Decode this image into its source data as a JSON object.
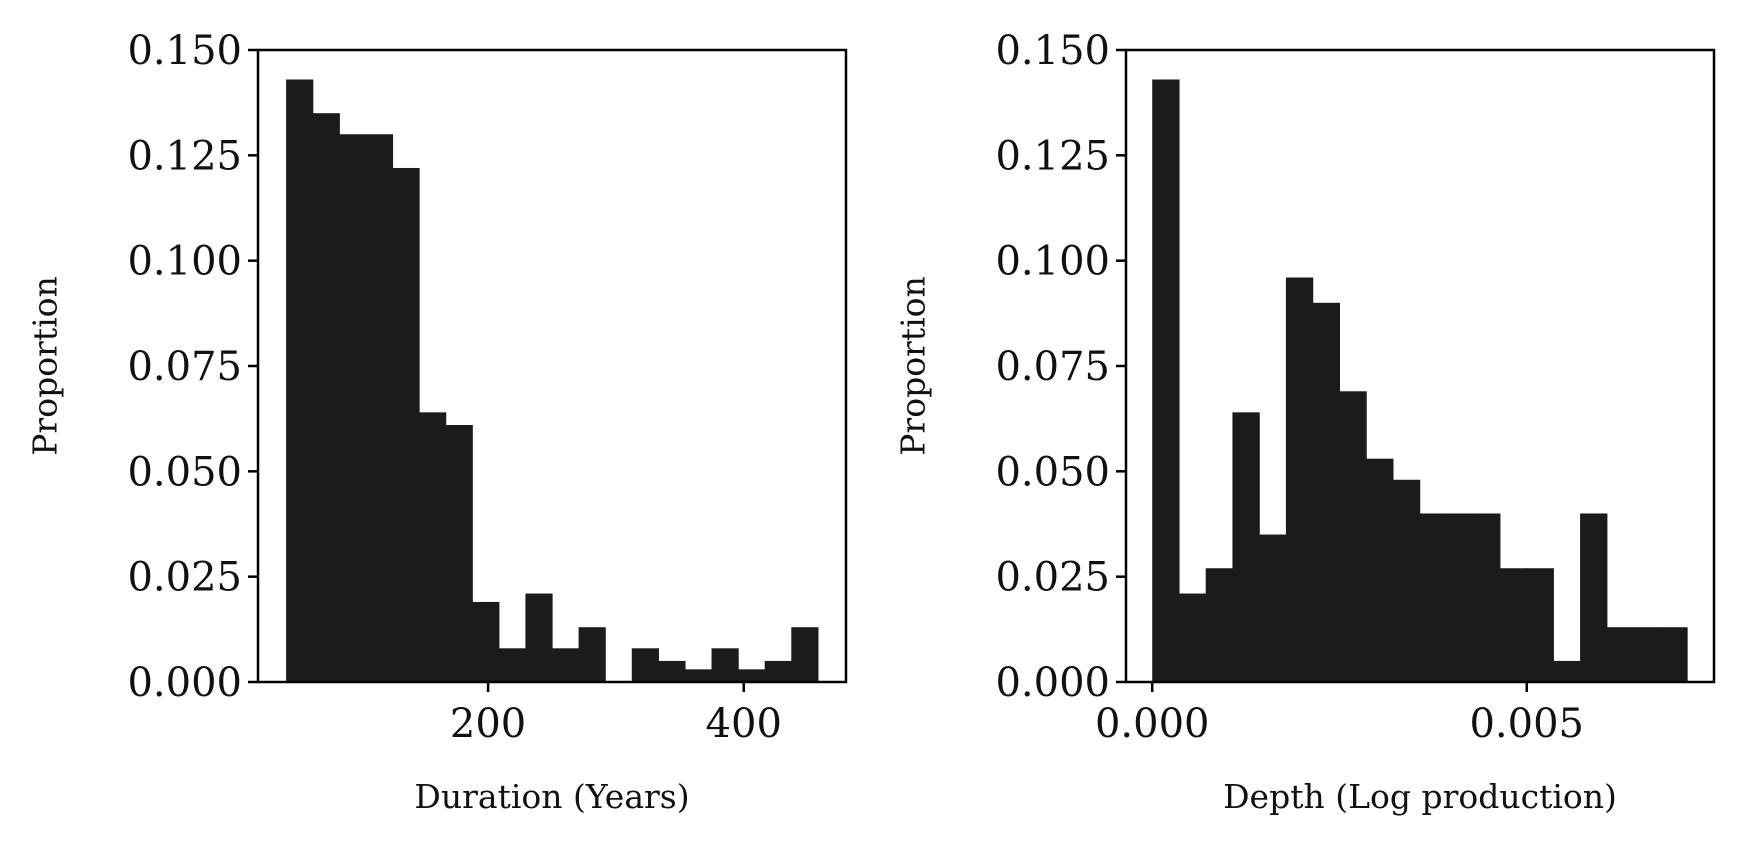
{
  "chart_data": [
    {
      "type": "bar",
      "subtype": "histogram",
      "xlabel": "Duration (Years)",
      "ylabel": "Proportion",
      "ylim": [
        0,
        0.15
      ],
      "xlim": [
        20,
        480
      ],
      "yticks": [
        "0.000",
        "0.025",
        "0.050",
        "0.075",
        "0.100",
        "0.125",
        "0.150"
      ],
      "ytick_values": [
        0,
        0.025,
        0.05,
        0.075,
        0.1,
        0.125,
        0.15
      ],
      "xticks": [
        "200",
        "400"
      ],
      "xtick_values": [
        200,
        400
      ],
      "bin_edges": [
        42,
        62.8,
        83.6,
        104.4,
        125.2,
        146,
        166.8,
        187.6,
        208.4,
        229.2,
        250,
        270.8,
        291.6,
        312.4,
        333.2,
        354,
        374.8,
        395.6,
        416.4,
        437.2,
        458
      ],
      "values": [
        0.143,
        0.135,
        0.13,
        0.13,
        0.122,
        0.064,
        0.061,
        0.019,
        0.008,
        0.021,
        0.008,
        0.013,
        0.0,
        0.008,
        0.005,
        0.003,
        0.008,
        0.003,
        0.005,
        0.013
      ],
      "color": "#1b1b1b",
      "grid": false
    },
    {
      "type": "bar",
      "subtype": "histogram",
      "xlabel": "Depth (Log production)",
      "ylabel": "Proportion",
      "ylim": [
        0,
        0.15
      ],
      "xlim": [
        -0.00035,
        0.0075
      ],
      "yticks": [
        "0.000",
        "0.025",
        "0.050",
        "0.075",
        "0.100",
        "0.125",
        "0.150"
      ],
      "ytick_values": [
        0,
        0.025,
        0.05,
        0.075,
        0.1,
        0.125,
        0.15
      ],
      "xticks": [
        "0.000",
        "0.005"
      ],
      "xtick_values": [
        0,
        0.005
      ],
      "bin_edges": [
        0.0,
        0.000357,
        0.000714,
        0.001071,
        0.001428,
        0.001785,
        0.002142,
        0.002499,
        0.002856,
        0.003213,
        0.00357,
        0.003927,
        0.004284,
        0.004641,
        0.004998,
        0.005355,
        0.005712,
        0.006069,
        0.006426,
        0.006783,
        0.00714
      ],
      "values": [
        0.143,
        0.021,
        0.027,
        0.064,
        0.035,
        0.096,
        0.09,
        0.069,
        0.053,
        0.048,
        0.04,
        0.04,
        0.04,
        0.027,
        0.027,
        0.005,
        0.04,
        0.013,
        0.013,
        0.013
      ],
      "color": "#1b1b1b",
      "grid": false
    }
  ]
}
